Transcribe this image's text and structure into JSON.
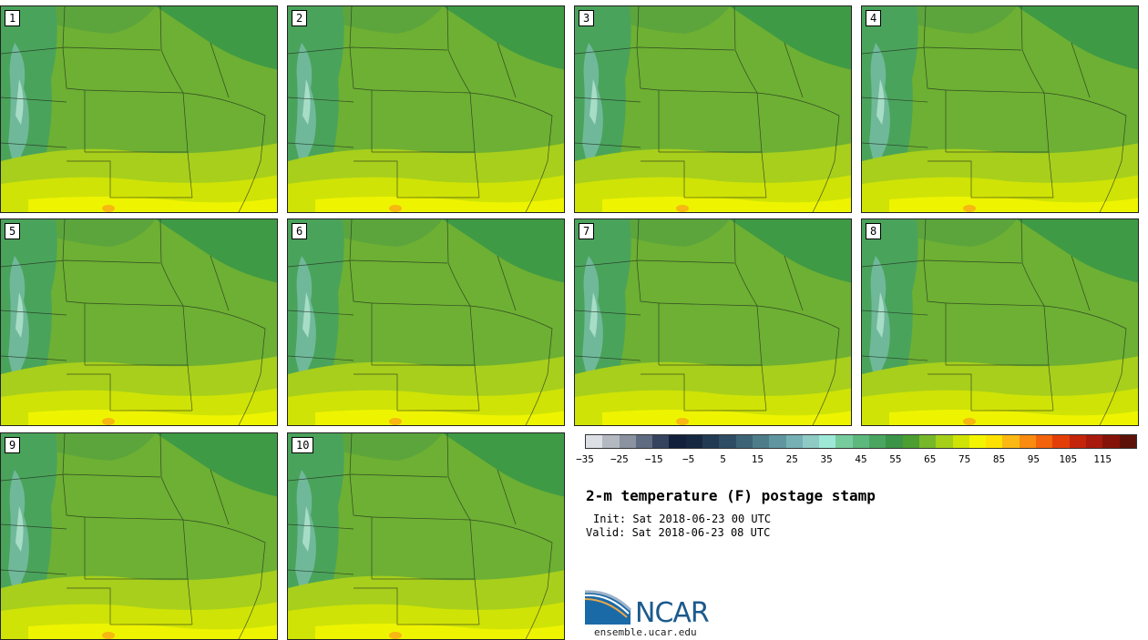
{
  "panels": [
    "1",
    "2",
    "3",
    "4",
    "5",
    "6",
    "7",
    "8",
    "9",
    "10"
  ],
  "colorbar": {
    "colors": [
      "#dcdfe3",
      "#b3b8c1",
      "#8b92a0",
      "#5f6b80",
      "#35435f",
      "#13203b",
      "#162840",
      "#223a52",
      "#2e4d64",
      "#3d6376",
      "#4e7d8a",
      "#5f96a0",
      "#75b1b4",
      "#8fcac5",
      "#9de8d6",
      "#77cc9e",
      "#5cb87d",
      "#4aa560",
      "#3b9447",
      "#4c9e30",
      "#77b82a",
      "#a6cf1a",
      "#cfe306",
      "#f3f500",
      "#fde100",
      "#fbb812",
      "#f88b10",
      "#f2630b",
      "#e43e08",
      "#c4240a",
      "#a81a0c",
      "#851309",
      "#5c1208"
    ],
    "ticks": [
      "−35",
      "−25",
      "−15",
      "−5",
      "5",
      "15",
      "25",
      "35",
      "45",
      "55",
      "65",
      "75",
      "85",
      "95",
      "105",
      "115"
    ]
  },
  "title": "2-m temperature (F) postage stamp",
  "init": "Init: Sat 2018-06-23 00 UTC",
  "valid": "Valid: Sat 2018-06-23 08 UTC",
  "logo": {
    "text": "NCAR",
    "site": "ensemble.ucar.edu"
  }
}
